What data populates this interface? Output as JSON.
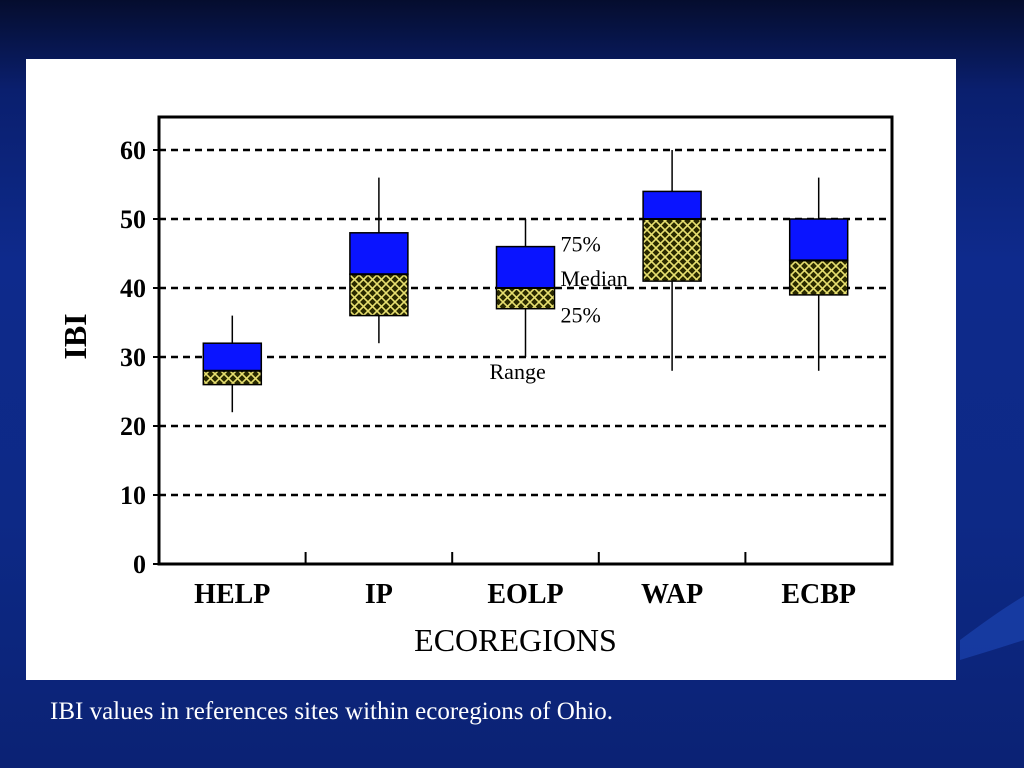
{
  "slide": {
    "caption": "IBI values in references sites within ecoregions of Ohio.",
    "background_color": "#0e2a8c",
    "caption_color": "#ffffff"
  },
  "chart_data": {
    "type": "box",
    "title": "",
    "xlabel": "ECOREGIONS",
    "ylabel": "IBI",
    "ylim": [
      0,
      65
    ],
    "yticks": [
      0,
      10,
      20,
      30,
      40,
      50,
      60
    ],
    "yticks_labels": [
      "0",
      "10",
      "20",
      "30",
      "40",
      "50",
      "60"
    ],
    "grid": "horizontal dashed",
    "categories": [
      "HELP",
      "IP",
      "EOLP",
      "WAP",
      "ECBP"
    ],
    "boxes": [
      {
        "category": "HELP",
        "min": 22,
        "q1": 26,
        "median": 28,
        "q3": 32,
        "max": 36
      },
      {
        "category": "IP",
        "min": 32,
        "q1": 36,
        "median": 42,
        "q3": 48,
        "max": 56
      },
      {
        "category": "EOLP",
        "min": 30,
        "q1": 37,
        "median": 40,
        "q3": 46,
        "max": 50
      },
      {
        "category": "WAP",
        "min": 28,
        "q1": 41,
        "median": 50,
        "q3": 54,
        "max": 60
      },
      {
        "category": "ECBP",
        "min": 28,
        "q1": 39,
        "median": 44,
        "q3": 50,
        "max": 56
      }
    ],
    "annotations": {
      "q3_label": "75%",
      "median_label": "Median",
      "q1_label": "25%",
      "range_label": "Range"
    },
    "colors": {
      "upper_box": "#0a14ff",
      "lower_box_fill": "#2a2a00",
      "lower_box_hatch": "#e8e070",
      "gridline": "#000000"
    }
  }
}
